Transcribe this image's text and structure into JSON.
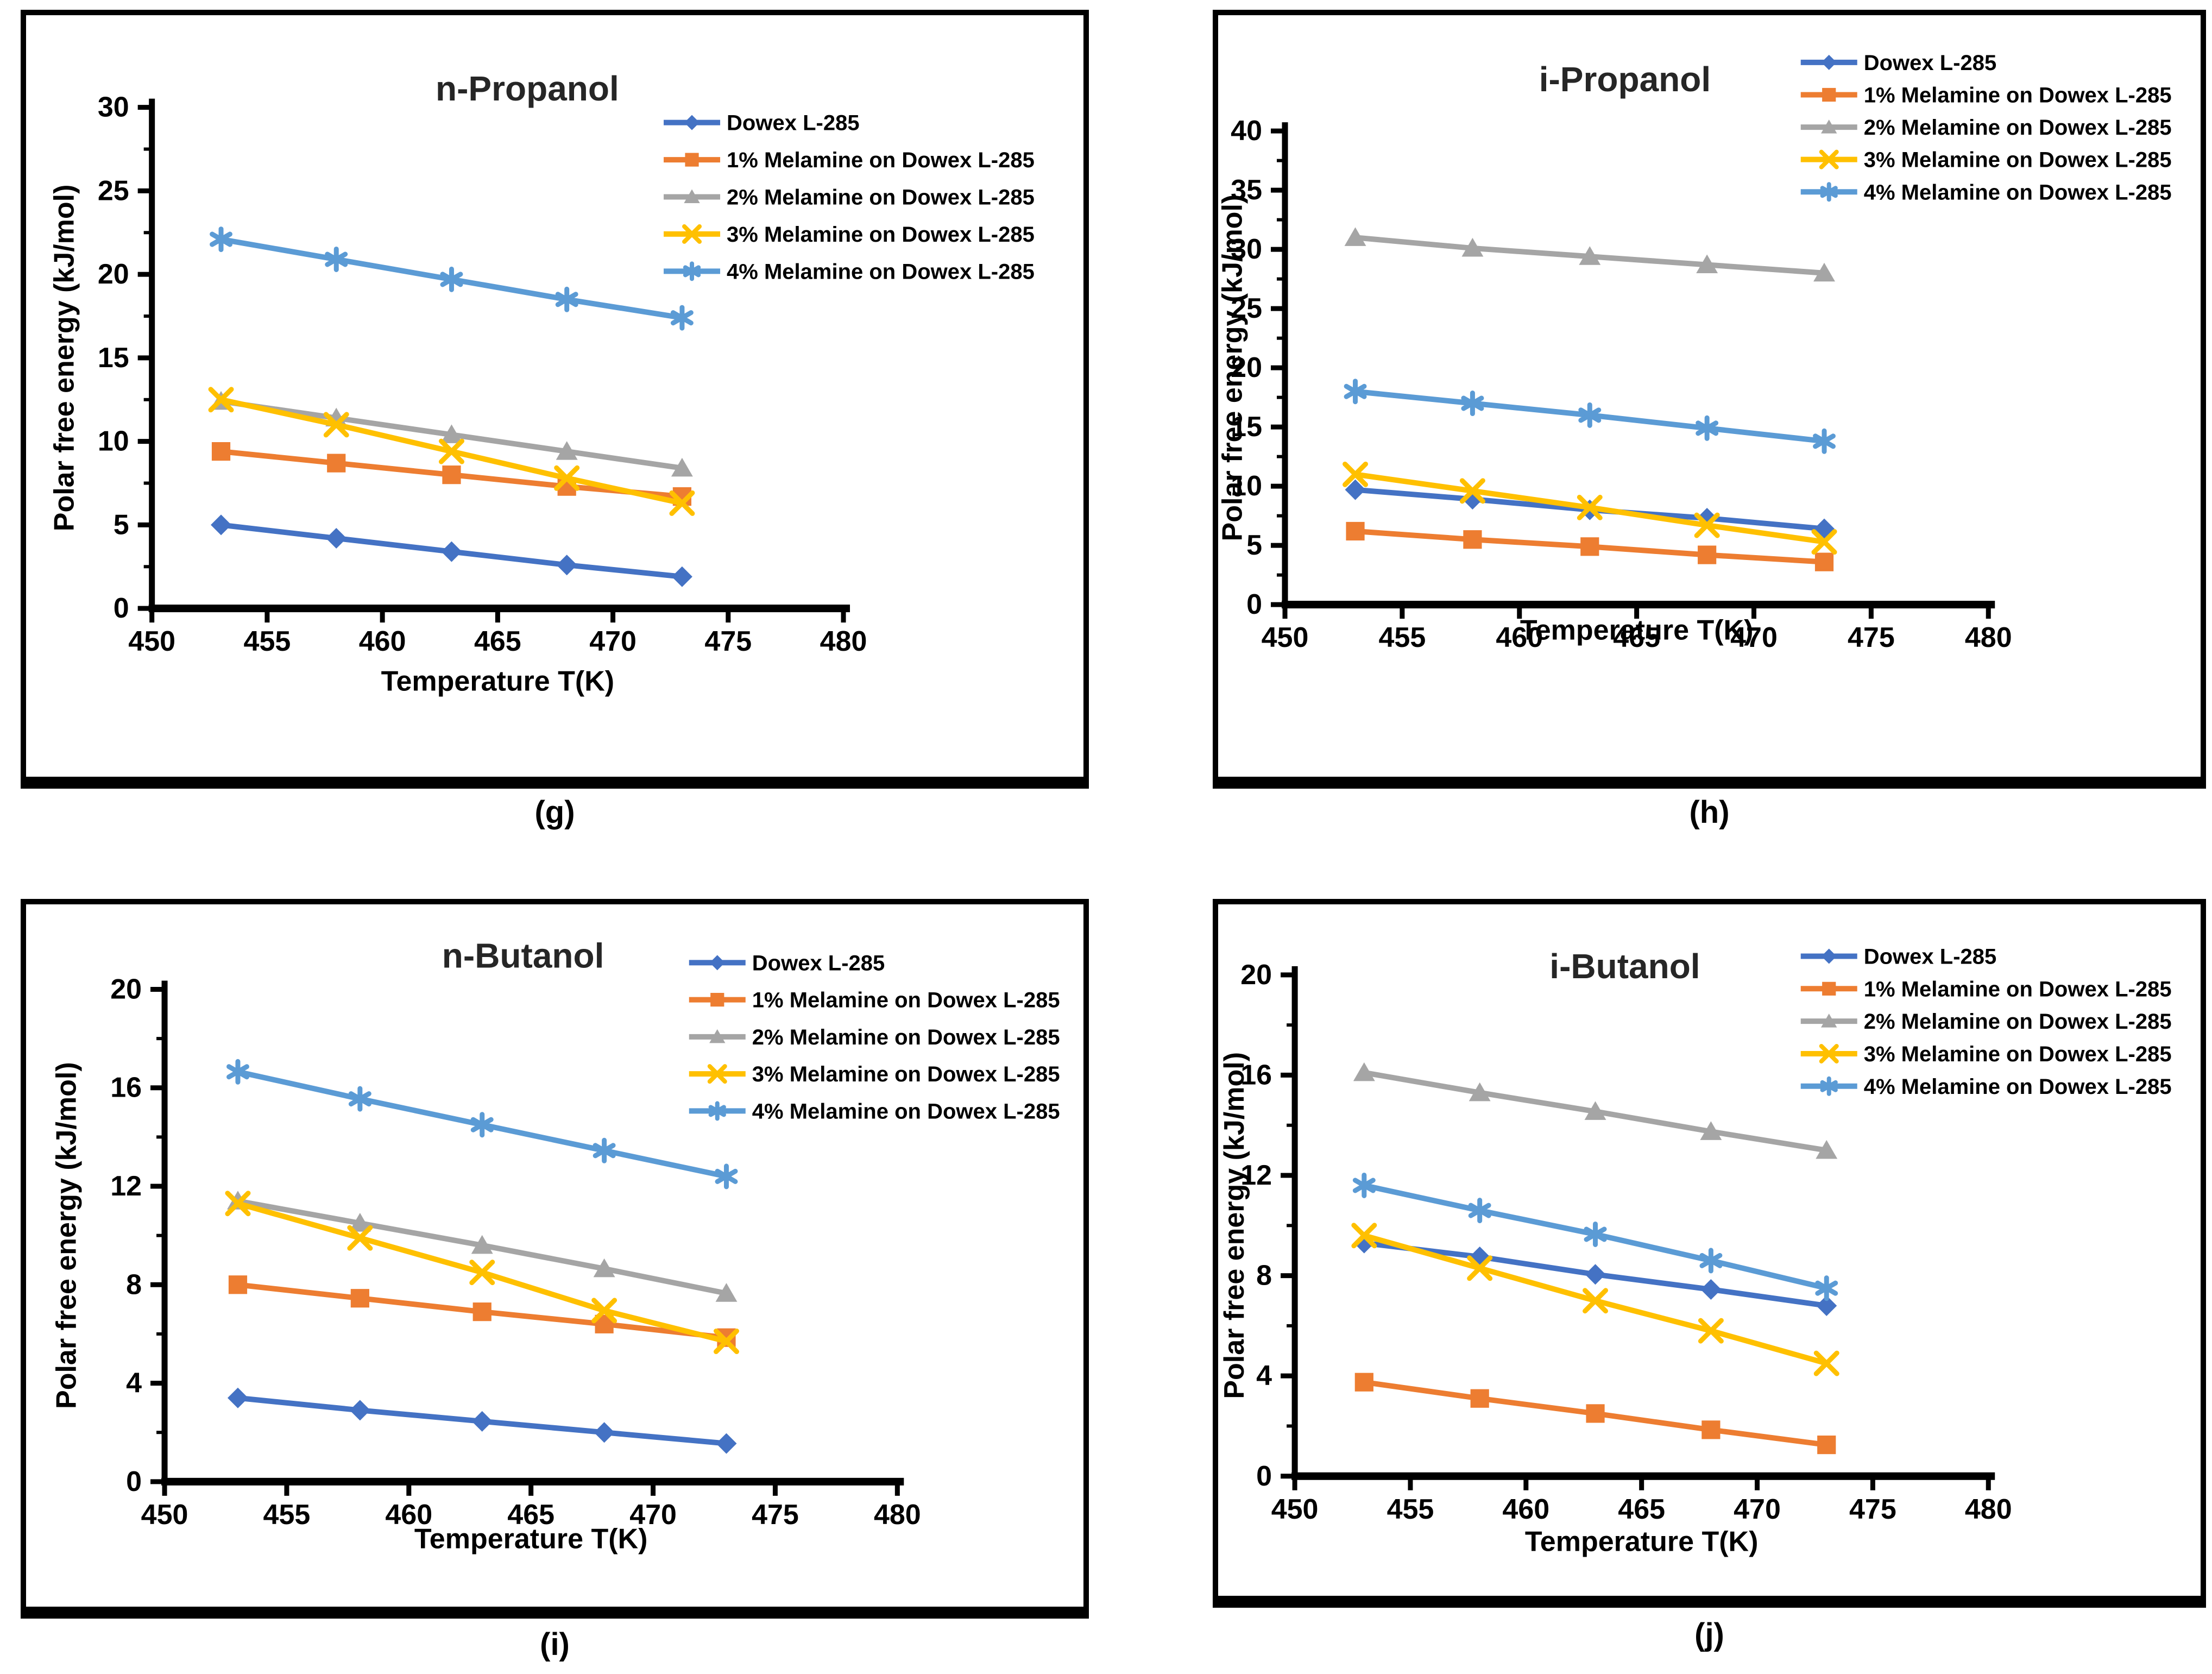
{
  "figure": {
    "description": "Four line charts of polar free energy versus temperature for alcohols on Dowex L-285 catalysts"
  },
  "chart_data": [
    {
      "id": "g",
      "caption": "(g)",
      "type": "line",
      "title": "n-Propanol",
      "xlabel": "Temperature T(K)",
      "ylabel": "Polar free energy (kJ/mol)",
      "xlim": [
        450,
        480
      ],
      "xtick_step": 5,
      "ylim": [
        0,
        30
      ],
      "ytick_step": 5,
      "ytick_minor_step": 2.5,
      "grid": false,
      "legend_position": "top-right",
      "x": [
        453,
        458,
        463,
        468,
        473
      ],
      "series": [
        {
          "name": "Dowex L-285",
          "color": "#4472C4",
          "marker": "diamond",
          "values": [
            5.0,
            4.2,
            3.4,
            2.6,
            1.9
          ]
        },
        {
          "name": "1% Melamine on Dowex L-285",
          "color": "#ED7D31",
          "marker": "square",
          "values": [
            9.4,
            8.7,
            8.0,
            7.3,
            6.7
          ]
        },
        {
          "name": "2% Melamine on Dowex L-285",
          "color": "#A5A5A5",
          "marker": "triangle",
          "values": [
            12.4,
            11.4,
            10.4,
            9.4,
            8.4
          ]
        },
        {
          "name": "3% Melamine on Dowex L-285",
          "color": "#FFC000",
          "marker": "x",
          "values": [
            12.5,
            11.0,
            9.4,
            7.8,
            6.3
          ]
        },
        {
          "name": "4% Melamine on Dowex L-285",
          "color": "#5B9BD5",
          "marker": "asterisk",
          "values": [
            22.1,
            20.9,
            19.7,
            18.5,
            17.4
          ]
        }
      ]
    },
    {
      "id": "h",
      "caption": "(h)",
      "type": "line",
      "title": "i-Propanol",
      "xlabel": "Temperature T(K)",
      "ylabel": "Polar free energy (kJ/mol)",
      "xlim": [
        450,
        480
      ],
      "xtick_step": 5,
      "ylim": [
        0,
        40
      ],
      "ytick_step": 5,
      "ytick_minor_step": 2.5,
      "grid": false,
      "legend_position": "top-right",
      "x": [
        453,
        458,
        463,
        468,
        473
      ],
      "series": [
        {
          "name": "Dowex L-285",
          "color": "#4472C4",
          "marker": "diamond",
          "values": [
            9.7,
            8.9,
            8.0,
            7.3,
            6.4
          ]
        },
        {
          "name": "1% Melamine on Dowex L-285",
          "color": "#ED7D31",
          "marker": "square",
          "values": [
            6.2,
            5.5,
            4.9,
            4.2,
            3.6
          ]
        },
        {
          "name": "2% Melamine on Dowex L-285",
          "color": "#A5A5A5",
          "marker": "triangle",
          "values": [
            31.0,
            30.1,
            29.4,
            28.7,
            28.0
          ]
        },
        {
          "name": "3% Melamine on Dowex L-285",
          "color": "#FFC000",
          "marker": "x",
          "values": [
            11.0,
            9.6,
            8.2,
            6.7,
            5.3
          ]
        },
        {
          "name": "4% Melamine on Dowex L-285",
          "color": "#5B9BD5",
          "marker": "asterisk",
          "values": [
            18.0,
            17.0,
            16.0,
            14.9,
            13.8
          ]
        }
      ]
    },
    {
      "id": "i",
      "caption": "(i)",
      "type": "line",
      "title": "n-Butanol",
      "xlabel": "Temperature T(K)",
      "ylabel": "Polar free energy (kJ/mol)",
      "xlim": [
        450,
        480
      ],
      "xtick_step": 5,
      "ylim": [
        0,
        20
      ],
      "ytick_step": 4,
      "ytick_minor_step": 2,
      "grid": false,
      "legend_position": "top-right",
      "x": [
        453,
        458,
        463,
        468,
        473
      ],
      "series": [
        {
          "name": "Dowex L-285",
          "color": "#4472C4",
          "marker": "diamond",
          "values": [
            3.4,
            2.9,
            2.45,
            2.0,
            1.55
          ]
        },
        {
          "name": "1% Melamine on Dowex L-285",
          "color": "#ED7D31",
          "marker": "square",
          "values": [
            8.0,
            7.45,
            6.9,
            6.4,
            5.85
          ]
        },
        {
          "name": "2% Melamine on Dowex L-285",
          "color": "#A5A5A5",
          "marker": "triangle",
          "values": [
            11.4,
            10.5,
            9.6,
            8.65,
            7.65
          ]
        },
        {
          "name": "3% Melamine on Dowex L-285",
          "color": "#FFC000",
          "marker": "x",
          "values": [
            11.3,
            9.9,
            8.5,
            6.95,
            5.7
          ]
        },
        {
          "name": "4% Melamine on Dowex L-285",
          "color": "#5B9BD5",
          "marker": "asterisk",
          "values": [
            16.65,
            15.55,
            14.5,
            13.45,
            12.4
          ]
        }
      ]
    },
    {
      "id": "j",
      "caption": "(j)",
      "type": "line",
      "title": "i-Butanol",
      "xlabel": "Temperature T(K)",
      "ylabel": "Polar free energy (kJ/mol)",
      "xlim": [
        450,
        480
      ],
      "xtick_step": 5,
      "ylim": [
        0,
        20
      ],
      "ytick_step": 4,
      "ytick_minor_step": 2,
      "grid": false,
      "legend_position": "top-right",
      "x": [
        453,
        458,
        463,
        468,
        473
      ],
      "series": [
        {
          "name": "Dowex L-285",
          "color": "#4472C4",
          "marker": "diamond",
          "values": [
            9.3,
            8.75,
            8.05,
            7.45,
            6.8
          ]
        },
        {
          "name": "1% Melamine on Dowex L-285",
          "color": "#ED7D31",
          "marker": "square",
          "values": [
            3.75,
            3.1,
            2.5,
            1.85,
            1.25
          ]
        },
        {
          "name": "2% Melamine on Dowex L-285",
          "color": "#A5A5A5",
          "marker": "triangle",
          "values": [
            16.1,
            15.3,
            14.55,
            13.75,
            13.0
          ]
        },
        {
          "name": "3% Melamine on Dowex L-285",
          "color": "#FFC000",
          "marker": "x",
          "values": [
            9.6,
            8.3,
            7.0,
            5.8,
            4.5
          ]
        },
        {
          "name": "4% Melamine on Dowex L-285",
          "color": "#5B9BD5",
          "marker": "asterisk",
          "values": [
            11.6,
            10.6,
            9.65,
            8.6,
            7.5
          ]
        }
      ]
    }
  ]
}
